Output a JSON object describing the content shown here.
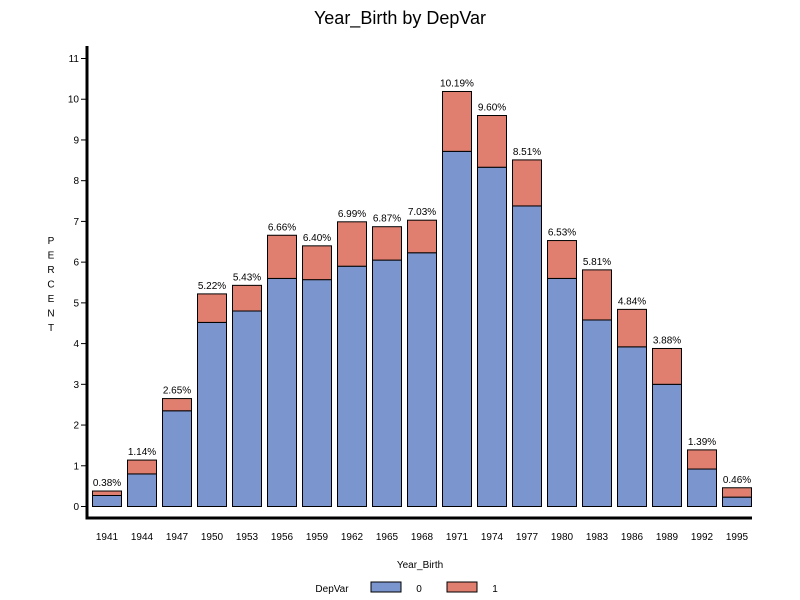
{
  "chart_data": {
    "type": "bar",
    "title": "Year_Birth by DepVar",
    "xlabel": "Year_Birth",
    "ylabel": "PERCENT",
    "ylim": [
      0,
      11
    ],
    "yticks": [
      0,
      1,
      2,
      3,
      4,
      5,
      6,
      7,
      8,
      9,
      10,
      11
    ],
    "categories": [
      "1941",
      "1944",
      "1947",
      "1950",
      "1953",
      "1956",
      "1959",
      "1962",
      "1965",
      "1968",
      "1971",
      "1974",
      "1977",
      "1980",
      "1983",
      "1986",
      "1989",
      "1992",
      "1995"
    ],
    "stacked": true,
    "series": [
      {
        "name": "0",
        "color": "#7b96cf",
        "values": [
          0.27,
          0.8,
          2.35,
          4.52,
          4.8,
          5.6,
          5.57,
          5.9,
          6.05,
          6.23,
          8.72,
          8.33,
          7.38,
          5.6,
          4.58,
          3.92,
          3.0,
          0.92,
          0.23
        ]
      },
      {
        "name": "1",
        "color": "#e07f6f",
        "values": [
          0.11,
          0.34,
          0.3,
          0.7,
          0.63,
          1.06,
          0.83,
          1.09,
          0.82,
          0.8,
          1.47,
          1.27,
          1.13,
          0.93,
          1.23,
          0.92,
          0.88,
          0.47,
          0.23
        ]
      }
    ],
    "totals_labels": [
      "0.38%",
      "1.14%",
      "2.65%",
      "5.22%",
      "5.43%",
      "6.66%",
      "6.40%",
      "6.99%",
      "6.87%",
      "7.03%",
      "10.19%",
      "9.60%",
      "8.51%",
      "6.53%",
      "5.81%",
      "4.84%",
      "3.88%",
      "1.39%",
      "0.46%"
    ],
    "totals": [
      0.38,
      1.14,
      2.65,
      5.22,
      5.43,
      6.66,
      6.4,
      6.99,
      6.87,
      7.03,
      10.19,
      9.6,
      8.51,
      6.53,
      5.81,
      4.84,
      3.88,
      1.39,
      0.46
    ],
    "legend": {
      "title": "DepVar",
      "position": "bottom"
    },
    "grid": false
  }
}
